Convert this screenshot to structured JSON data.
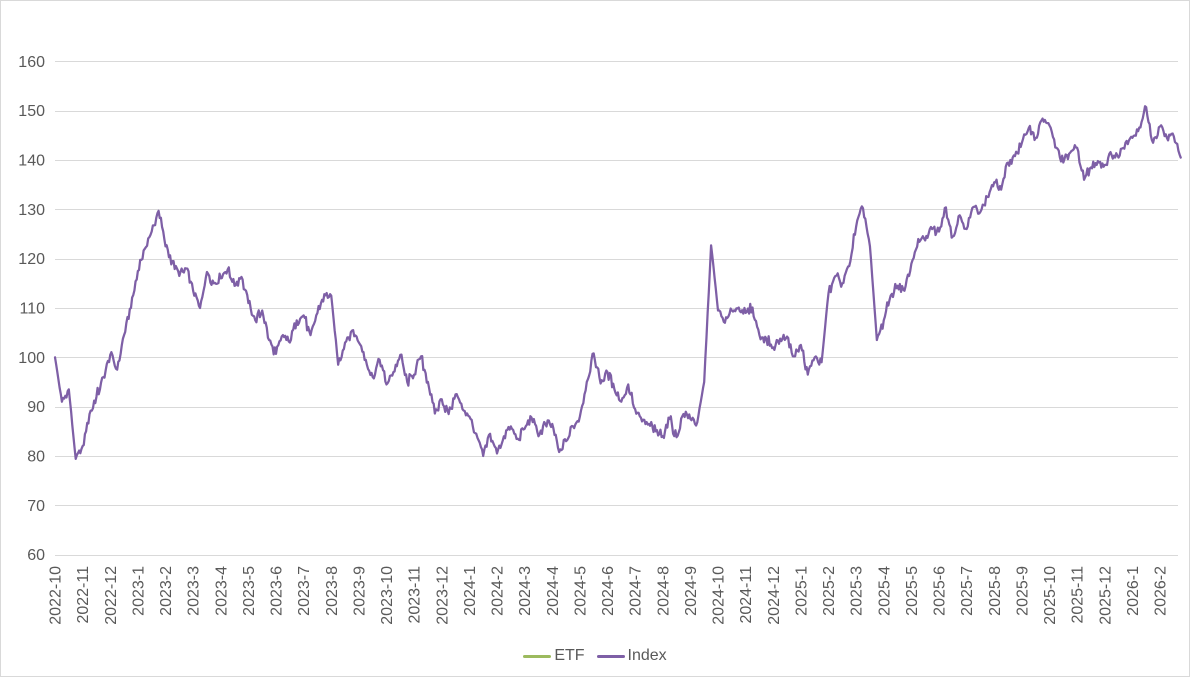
{
  "chart_data": {
    "type": "line",
    "title": "",
    "background": "#FFFFFF",
    "border_color": "#D9D9D9",
    "grid_color": "#D9D9D9",
    "axis_text_color": "#595959",
    "grid": true,
    "legend": {
      "position": "bottom",
      "entries": [
        {
          "name": "ETF",
          "color": "#9CBA5E"
        },
        {
          "name": "Index",
          "color": "#7E5FA6"
        }
      ]
    },
    "y_axis": {
      "min": 60,
      "max": 160,
      "step": 10,
      "ticks": [
        "60",
        "70",
        "80",
        "90",
        "100",
        "110",
        "120",
        "130",
        "140",
        "150",
        "160"
      ]
    },
    "x_axis": {
      "label_rotation_deg": 90,
      "labels": [
        "2022-10",
        "2022-11",
        "2022-12",
        "2023-1",
        "2023-2",
        "2023-3",
        "2023-4",
        "2023-5",
        "2023-6",
        "2023-7",
        "2023-8",
        "2023-9",
        "2023-10",
        "2023-11",
        "2023-12",
        "2024-1",
        "2024-2",
        "2024-3",
        "2024-4",
        "2024-5",
        "2024-6",
        "2024-7",
        "2024-8",
        "2024-9",
        "2024-10",
        "2024-11",
        "2024-12",
        "2025-1",
        "2025-2",
        "2025-3",
        "2025-4",
        "2025-5",
        "2025-6",
        "2025-7",
        "2025-8",
        "2025-9",
        "2025-10",
        "2025-11",
        "2025-12",
        "2026-1",
        "2026-2"
      ]
    },
    "series": [
      {
        "name": "ETF",
        "color": "#9CBA5E",
        "values": []
      },
      {
        "name": "Index",
        "color": "#7E5FA6",
        "points_per_month": 4,
        "values": [
          100,
          91,
          93.5,
          79.4,
          82,
          88.5,
          92,
          96,
          100.5,
          97.5,
          104.5,
          110,
          117.5,
          122,
          125.5,
          129.7,
          122.5,
          119.5,
          116.5,
          118,
          113.5,
          110,
          117.3,
          115,
          116,
          117.8,
          114.5,
          116.3,
          111,
          107.5,
          109.5,
          103.5,
          100.7,
          104.5,
          103,
          107.5,
          108.5,
          104.5,
          109,
          112.8,
          112.5,
          98.5,
          103,
          105.4,
          103,
          99.5,
          96,
          99.5,
          94.5,
          97,
          100.5,
          95,
          96.5,
          100.2,
          95,
          88.6,
          91.5,
          88.5,
          92.5,
          89.5,
          88,
          84.5,
          80,
          84.5,
          80.5,
          84,
          86,
          83.5,
          85.5,
          87.8,
          84,
          86.5,
          86.5,
          80.8,
          83,
          86,
          88,
          95,
          100.8,
          94.7,
          97,
          93.5,
          91,
          94.5,
          89.5,
          87,
          86.5,
          85,
          84,
          87.5,
          83.8,
          88.5,
          87.5,
          86.8,
          95,
          122.7,
          109.5,
          107,
          109.5,
          110.1,
          109,
          110.1,
          104.5,
          103.8,
          102,
          103.8,
          104.2,
          100.2,
          102.5,
          96.5,
          100,
          99,
          113,
          116.5,
          115,
          118.5,
          126.5,
          130.2,
          122.5,
          103.5,
          107.5,
          112.5,
          114.5,
          113.5,
          119,
          124,
          123.7,
          126,
          125.5,
          130.4,
          124.5,
          128.8,
          126,
          130.5,
          129.5,
          132.5,
          135.5,
          134,
          139.5,
          140.8,
          143.5,
          146.5,
          144.5,
          148.4,
          147,
          142.5,
          139.5,
          141.5,
          142.5,
          136,
          138.5,
          139.8,
          139,
          141,
          140.5,
          143.5,
          144.5,
          146.6,
          150.7,
          143.5,
          146.8,
          144.5,
          144.8,
          140.5
        ]
      }
    ]
  }
}
